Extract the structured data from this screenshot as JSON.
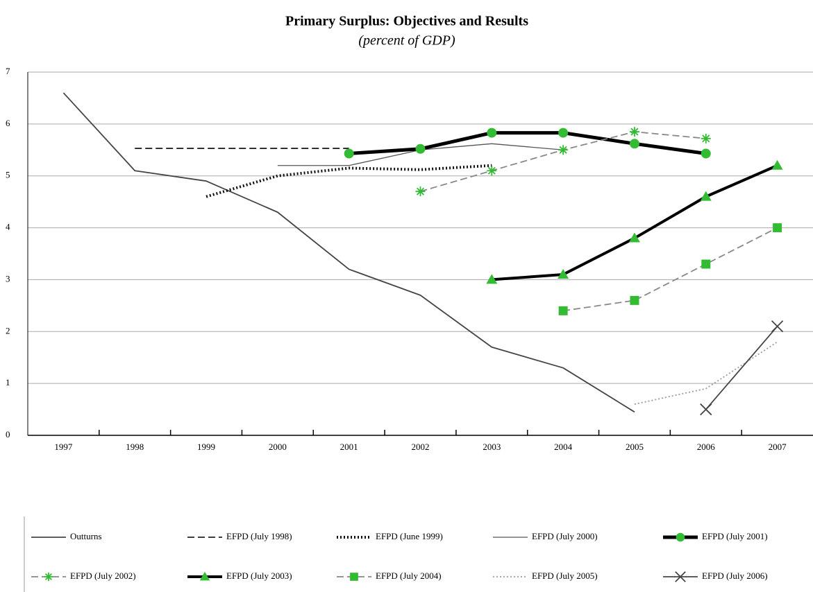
{
  "chart_data": {
    "type": "line",
    "title": "Primary Surplus: Objectives and Results",
    "subtitle": "(percent of GDP)",
    "categories": [
      "1997",
      "1998",
      "1999",
      "2000",
      "2001",
      "2002",
      "2003",
      "2004",
      "2005",
      "2006",
      "2007"
    ],
    "ylim": [
      0,
      7
    ],
    "yticks": [
      0,
      1,
      2,
      3,
      4,
      5,
      6,
      7
    ],
    "grid": true,
    "series": [
      {
        "name": "Outturns",
        "color": "#444444",
        "dash": "solid",
        "weight": "medium",
        "marker": "none",
        "values": [
          6.6,
          5.1,
          4.9,
          4.3,
          3.2,
          2.7,
          1.7,
          1.3,
          0.45,
          null,
          null
        ]
      },
      {
        "name": "EFPD (July 1998)",
        "color": "#222222",
        "dash": "dashed",
        "weight": "medium",
        "marker": "none",
        "values": [
          null,
          5.53,
          5.53,
          5.53,
          5.53,
          null,
          null,
          null,
          null,
          null,
          null
        ]
      },
      {
        "name": "EFPD (June 1999)",
        "color": "#111111",
        "dash": "dotted",
        "weight": "thick",
        "marker": "none",
        "values": [
          null,
          null,
          4.6,
          5.0,
          5.15,
          5.12,
          5.2,
          null,
          null,
          null,
          null
        ]
      },
      {
        "name": "EFPD (July 2000)",
        "color": "#555555",
        "dash": "solid",
        "weight": "thin",
        "marker": "none",
        "values": [
          null,
          null,
          null,
          5.2,
          5.2,
          5.5,
          5.62,
          5.5,
          null,
          null,
          null
        ]
      },
      {
        "name": "EFPD (July 2001)",
        "color": "#000000",
        "dash": "solid",
        "weight": "heavy",
        "marker": "circle",
        "marker_color": "#33bb33",
        "values": [
          null,
          null,
          null,
          null,
          5.43,
          5.52,
          5.83,
          5.83,
          5.62,
          5.43,
          null
        ]
      },
      {
        "name": "EFPD (July 2002)",
        "color": "#888888",
        "dash": "dashed",
        "weight": "medium",
        "marker": "asterisk",
        "marker_color": "#33bb33",
        "values": [
          null,
          null,
          null,
          null,
          null,
          4.7,
          5.1,
          5.5,
          5.85,
          5.72,
          null
        ]
      },
      {
        "name": "EFPD (July 2003)",
        "color": "#000000",
        "dash": "solid",
        "weight": "thick",
        "marker": "triangle",
        "marker_color": "#33bb33",
        "values": [
          null,
          null,
          null,
          null,
          null,
          null,
          3.0,
          3.1,
          3.8,
          4.6,
          5.2
        ]
      },
      {
        "name": "EFPD (July 2004)",
        "color": "#888888",
        "dash": "dashed",
        "weight": "medium",
        "marker": "square",
        "marker_color": "#33bb33",
        "values": [
          null,
          null,
          null,
          null,
          null,
          null,
          null,
          2.4,
          2.6,
          3.3,
          4.0
        ]
      },
      {
        "name": "EFPD (July 2005)",
        "color": "#999999",
        "dash": "dotted",
        "weight": "medium",
        "marker": "none",
        "values": [
          null,
          null,
          null,
          null,
          null,
          null,
          null,
          null,
          0.6,
          0.9,
          1.8
        ]
      },
      {
        "name": "EFPD (July 2006)",
        "color": "#444444",
        "dash": "solid",
        "weight": "medium",
        "marker": "cross",
        "marker_color": "#444444",
        "values": [
          null,
          null,
          null,
          null,
          null,
          null,
          null,
          null,
          null,
          0.5,
          2.1
        ]
      }
    ]
  }
}
